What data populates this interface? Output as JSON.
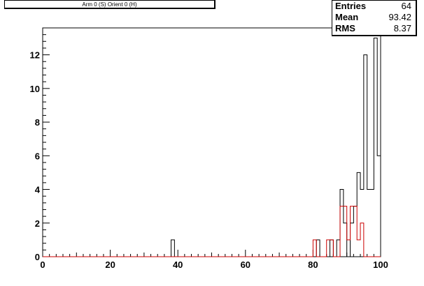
{
  "title": "Arm 0 (S) Orient 0 (H)",
  "stats": {
    "entries_label": "Entries",
    "entries_value": "64",
    "mean_label": "Mean",
    "mean_value": "93.42",
    "rms_label": "RMS",
    "rms_value": "8.37"
  },
  "chart_data": {
    "type": "bar",
    "xlim": [
      0,
      100
    ],
    "ylim": [
      0,
      13.6
    ],
    "bin_width": 1,
    "x_ticks": [
      0,
      20,
      40,
      60,
      80,
      100
    ],
    "y_ticks": [
      0,
      2,
      4,
      6,
      8,
      10,
      12
    ],
    "grid": false,
    "legend": "none",
    "series": [
      {
        "color": "#000000",
        "bins": [
          {
            "x": 38,
            "y": 1
          },
          {
            "x": 81,
            "y": 1
          },
          {
            "x": 85,
            "y": 1
          },
          {
            "x": 87,
            "y": 1
          },
          {
            "x": 88,
            "y": 4
          },
          {
            "x": 89,
            "y": 2
          },
          {
            "x": 91,
            "y": 2
          },
          {
            "x": 92,
            "y": 3
          },
          {
            "x": 93,
            "y": 5
          },
          {
            "x": 94,
            "y": 4
          },
          {
            "x": 95,
            "y": 12
          },
          {
            "x": 96,
            "y": 4
          },
          {
            "x": 97,
            "y": 4
          },
          {
            "x": 98,
            "y": 13
          },
          {
            "x": 99,
            "y": 6
          }
        ]
      },
      {
        "color": "#cc0000",
        "bins": [
          {
            "x": 80,
            "y": 1
          },
          {
            "x": 84,
            "y": 1
          },
          {
            "x": 85,
            "y": 1
          },
          {
            "x": 88,
            "y": 3
          },
          {
            "x": 89,
            "y": 3
          },
          {
            "x": 90,
            "y": 1
          },
          {
            "x": 91,
            "y": 3
          },
          {
            "x": 92,
            "y": 3
          },
          {
            "x": 93,
            "y": 1
          },
          {
            "x": 94,
            "y": 2
          }
        ]
      }
    ]
  }
}
